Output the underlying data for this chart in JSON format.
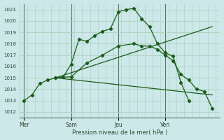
{
  "bg_color": "#cce8e8",
  "grid_color": "#aaccbb",
  "line_color": "#1a5c1a",
  "vline_color": "#557766",
  "title": "Pression niveau de la mer( hPa )",
  "ylim": [
    1011.5,
    1021.5
  ],
  "yticks": [
    1012,
    1013,
    1014,
    1015,
    1016,
    1017,
    1018,
    1019,
    1020,
    1021
  ],
  "day_labels": [
    "Mer",
    "Sam",
    "Jeu",
    "Ven"
  ],
  "day_positions": [
    0,
    3,
    6,
    9
  ],
  "xlim": [
    -0.3,
    12.5
  ],
  "line1_x": [
    0,
    0.5,
    1,
    1.5,
    2,
    2.5,
    3,
    3.5,
    4,
    4.5,
    5,
    5.5,
    6,
    6.5,
    7,
    7.5,
    8,
    8.5,
    9,
    9.5,
    10,
    10.5
  ],
  "line1_y": [
    1013.0,
    1013.5,
    1014.5,
    1014.8,
    1015.0,
    1015.1,
    1016.2,
    1018.4,
    1018.2,
    1018.7,
    1019.1,
    1019.3,
    1020.8,
    1021.0,
    1021.1,
    1020.2,
    1019.5,
    1018.0,
    1017.2,
    1016.9,
    1014.6,
    1013.0
  ],
  "line2_x": [
    2,
    3,
    4,
    5,
    6,
    7,
    7.5,
    8,
    8.5,
    9,
    9.5,
    10,
    10.5,
    11,
    11.5,
    12
  ],
  "line2_y": [
    1015.0,
    1015.1,
    1016.3,
    1017.0,
    1017.8,
    1018.0,
    1017.8,
    1017.8,
    1017.5,
    1017.0,
    1016.5,
    1015.3,
    1014.8,
    1014.0,
    1013.8,
    1012.3
  ],
  "line3_x": [
    2,
    12
  ],
  "line3_y": [
    1015.0,
    1019.5
  ],
  "line4_x": [
    2,
    12
  ],
  "line4_y": [
    1015.0,
    1013.5
  ],
  "vline_positions": [
    0,
    3,
    6,
    9
  ]
}
